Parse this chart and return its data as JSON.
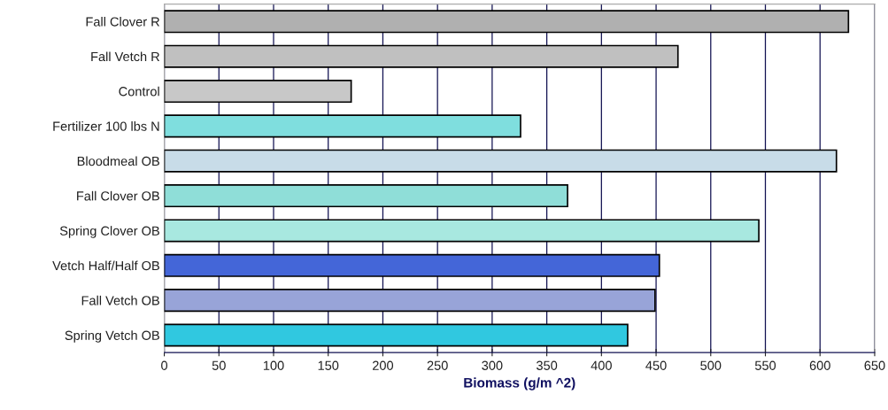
{
  "chart_data": {
    "type": "bar",
    "orientation": "horizontal",
    "xlabel": "Biomass (g/m ^2)",
    "categories": [
      "Fall Clover R",
      "Fall Vetch R",
      "Control",
      "Fertilizer 100 lbs N",
      "Bloodmeal OB",
      "Fall Clover OB",
      "Spring Clover OB",
      "Vetch Half/Half OB",
      "Fall Vetch OB",
      "Spring Vetch OB"
    ],
    "values": [
      626,
      470,
      171,
      326,
      615,
      369,
      544,
      453,
      449,
      424
    ],
    "colors": [
      "#b0b0b0",
      "#c0c0c0",
      "#c8c8c8",
      "#7fdede",
      "#c8dce8",
      "#8fded8",
      "#a8e8e0",
      "#4466d8",
      "#98a4d8",
      "#30c8e0"
    ],
    "xlim": [
      0,
      650
    ],
    "xticks": [
      0,
      50,
      100,
      150,
      200,
      250,
      300,
      350,
      400,
      450,
      500,
      550,
      600,
      650
    ],
    "grid": "x"
  }
}
